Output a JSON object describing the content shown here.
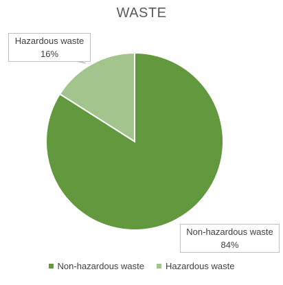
{
  "chart_data": {
    "type": "pie",
    "title": "WASTE",
    "categories": [
      "Non-hazardous waste",
      "Hazardous waste"
    ],
    "values": [
      84,
      16
    ],
    "value_labels": [
      "84%",
      "16%"
    ],
    "colors": [
      "#62993e",
      "#a4c48e"
    ],
    "start_angle_deg": 0,
    "direction": "clockwise",
    "legend_position": "bottom"
  }
}
